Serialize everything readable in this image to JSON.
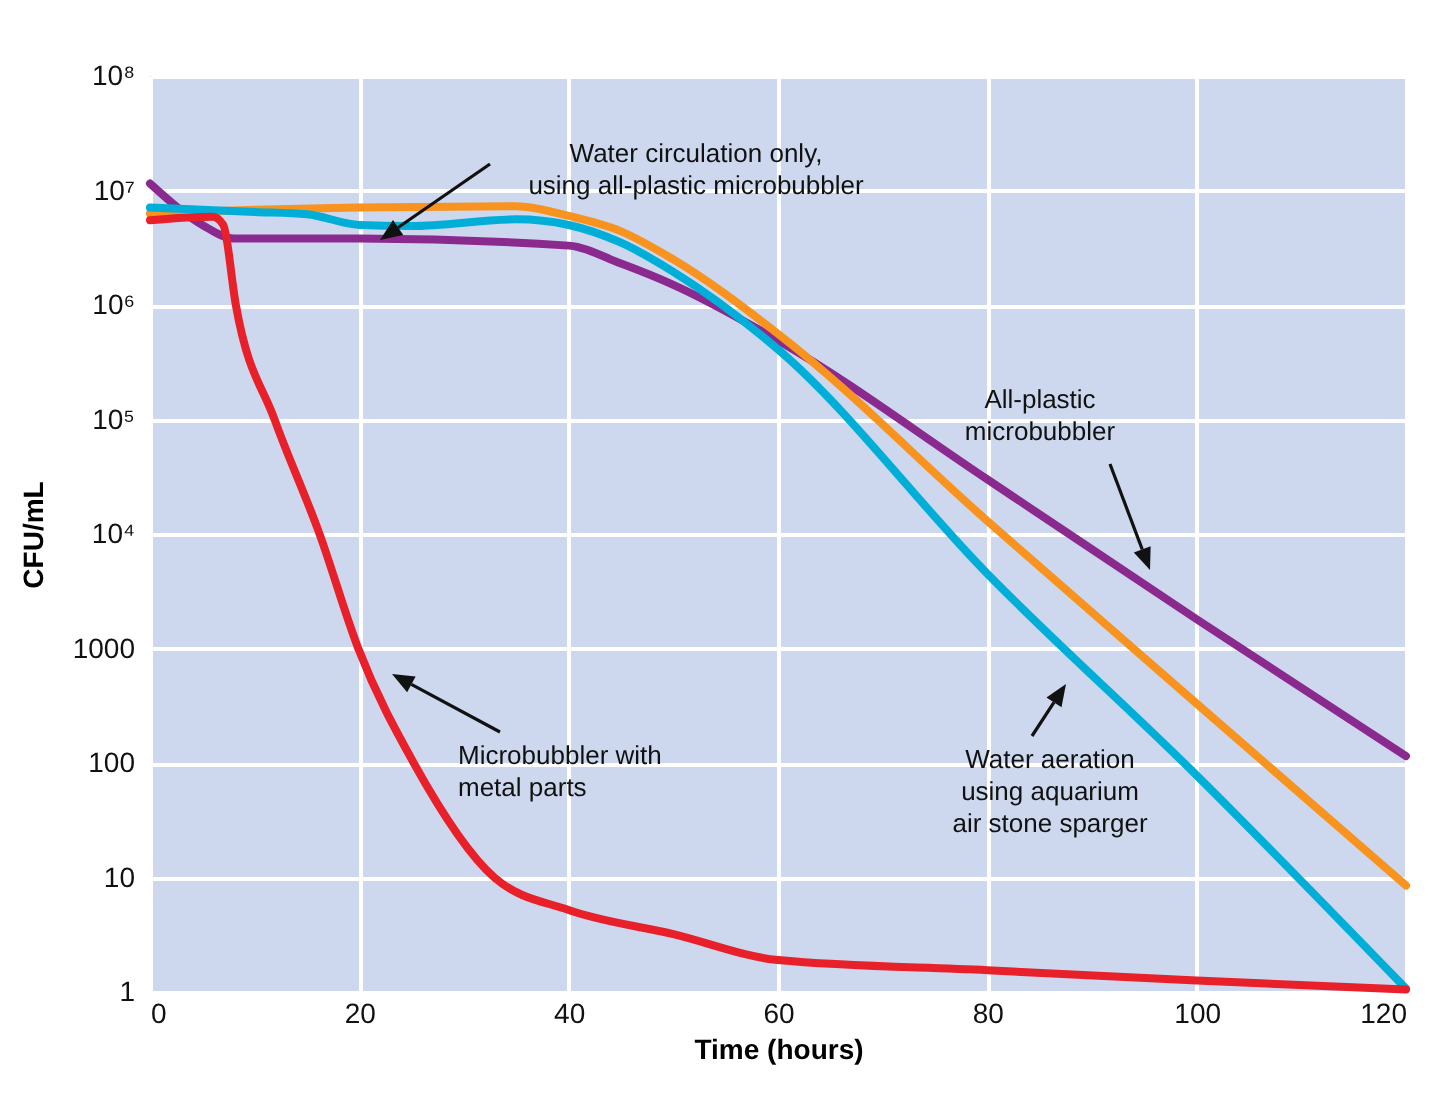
{
  "chart_data": {
    "type": "line",
    "xlabel": "Time (hours)",
    "ylabel": "CFU/mL",
    "log": "y",
    "grid": true,
    "line_style": "solid",
    "xlim": [
      0,
      120
    ],
    "xticks": [
      0,
      20,
      40,
      60,
      80,
      100,
      120
    ],
    "ylim": [
      1,
      100000000
    ],
    "yticks": [
      1,
      10,
      100,
      1000,
      {
        "value": 10000,
        "label": "10⁴"
      },
      {
        "value": 100000,
        "label": "10⁵"
      },
      {
        "value": 1000000,
        "label": "10⁶"
      },
      {
        "value": 10000000,
        "label": "10⁷"
      },
      {
        "value": 100000000,
        "label": "10⁸"
      }
    ],
    "series": [
      {
        "color": "#8b2a8e",
        "x": [
          0,
          5,
          8,
          20,
          40,
          45,
          50,
          60,
          80,
          100,
          120
        ],
        "values": [
          11500000,
          5000000,
          3800000,
          3800000,
          3300000,
          2300000,
          1500000,
          490000,
          30000,
          1800,
          115
        ]
      },
      {
        "color": "#f7931e",
        "x": [
          0,
          10,
          20,
          35,
          40,
          45,
          50,
          60,
          80,
          100,
          120
        ],
        "values": [
          6300000,
          6800000,
          7100000,
          7300000,
          6000000,
          4400000,
          2500000,
          560000,
          13000,
          330,
          8.5
        ]
      },
      {
        "color": "#00aed8",
        "x": [
          0,
          10,
          15,
          20,
          25,
          35,
          40,
          45,
          50,
          60,
          80,
          100,
          120
        ],
        "values": [
          7100000,
          6500000,
          6200000,
          5000000,
          4900000,
          5600000,
          5000000,
          3500000,
          1950000,
          410000,
          4500,
          78,
          1.07
        ]
      },
      {
        "color": "#e8202a",
        "x": [
          0,
          6,
          7,
          8.2,
          11.9,
          16.2,
          19.9,
          25.2,
          32.9,
          40,
          50,
          60,
          80,
          100,
          120
        ],
        "values": [
          5500000,
          5900000,
          5000000,
          1000000,
          100000,
          10000,
          1000,
          100,
          10,
          5.2,
          3.2,
          1.9,
          1.55,
          1.26,
          1.05
        ]
      }
    ],
    "annotations": [
      "Water circulation only,\nusing all-plastic microbubbler",
      "All-plastic\nmicrobubbler",
      "Water aeration\nusing aquarium\nair stone sparger",
      "Microbubbler with\nmetal parts"
    ]
  }
}
